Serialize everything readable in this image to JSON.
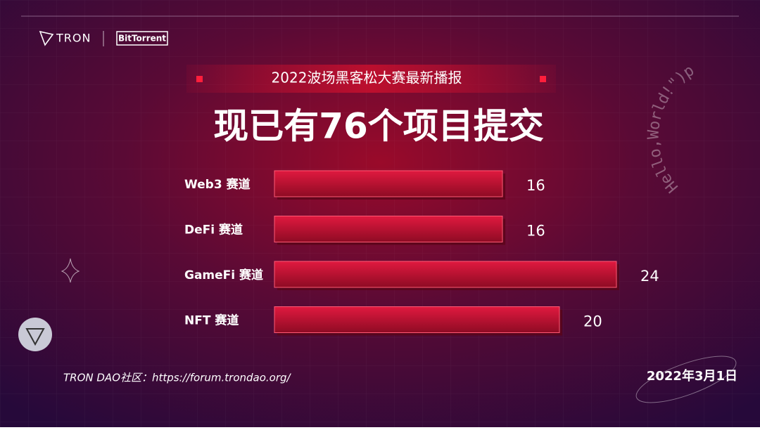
{
  "brand": {
    "logo_left": "TRON",
    "logo_right": "BitTorrent"
  },
  "decoration_text": "Hello,World!\")p",
  "chart_data": {
    "type": "bar",
    "orientation": "horizontal",
    "subtitle": "2022波场黑客松大赛最新播报",
    "title": "现已有76个项目提交",
    "categories": [
      "Web3 赛道",
      "DeFi 赛道",
      "GameFi 赛道",
      "NFT 赛道"
    ],
    "values": [
      16,
      16,
      24,
      20
    ],
    "color": "#c8102e"
  },
  "footer": {
    "link": "TRON DAO社区：https://forum.trondao.org/",
    "date": "2022年3月1日"
  }
}
